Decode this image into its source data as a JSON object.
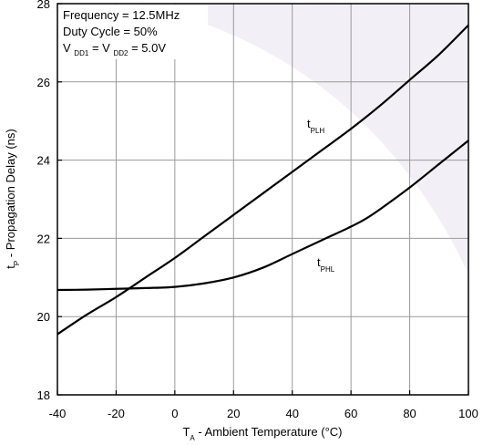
{
  "chart_data": {
    "type": "line",
    "xlabel": {
      "main": "T",
      "sub": "A",
      "rest": " - Ambient Temperature (°C)"
    },
    "ylabel": {
      "main": "t",
      "sub": "P",
      "rest": " - Propagation Delay (ns)"
    },
    "xlim": [
      -40,
      100
    ],
    "ylim": [
      18,
      28
    ],
    "xticks": [
      -40,
      -20,
      0,
      20,
      40,
      60,
      80,
      100
    ],
    "yticks": [
      18,
      20,
      22,
      24,
      26,
      28
    ],
    "grid": true,
    "annotations": {
      "frequency": "Frequency = 12.5MHz",
      "duty_cycle": "Duty Cycle = 50%",
      "vdd": {
        "v1": "V",
        "sub1": "DD1",
        "eq": " = V",
        "sub2": "DD2",
        "val": " = 5.0V"
      }
    },
    "series": [
      {
        "name": "tPLH",
        "label_main": "t",
        "label_sub": "PLH",
        "x": [
          -40,
          -30,
          -20,
          -10,
          0,
          10,
          20,
          30,
          40,
          50,
          60,
          70,
          80,
          90,
          100
        ],
        "y": [
          19.55,
          20.05,
          20.5,
          21.0,
          21.5,
          22.05,
          22.6,
          23.15,
          23.7,
          24.25,
          24.8,
          25.4,
          26.05,
          26.7,
          27.45
        ]
      },
      {
        "name": "tPHL",
        "label_main": "t",
        "label_sub": "PHL",
        "x": [
          -40,
          -30,
          -20,
          -10,
          0,
          10,
          20,
          30,
          40,
          50,
          60,
          65,
          70,
          80,
          90,
          100
        ],
        "y": [
          20.68,
          20.69,
          20.71,
          20.73,
          20.76,
          20.85,
          21.0,
          21.25,
          21.6,
          21.95,
          22.3,
          22.5,
          22.75,
          23.3,
          23.9,
          24.5
        ]
      }
    ]
  }
}
